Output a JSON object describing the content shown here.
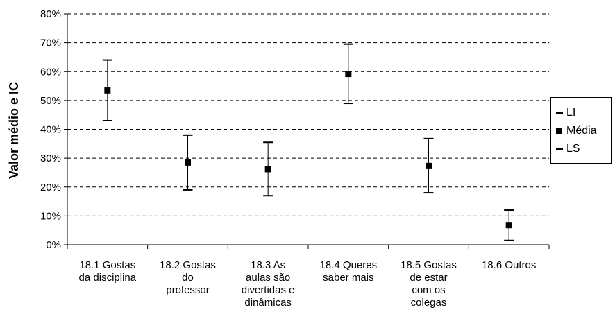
{
  "chart_data": {
    "type": "error_bar",
    "categories": [
      [
        "18.1 Gostas",
        "da disciplina"
      ],
      [
        "18.2 Gostas",
        "do",
        "professor"
      ],
      [
        "18.3 As",
        "aulas são",
        "divertidas e",
        "dinâmicas"
      ],
      [
        "18.4 Queres",
        "saber mais"
      ],
      [
        "18.5 Gostas",
        "de estar",
        "com os",
        "colegas"
      ],
      [
        "18.6 Outros"
      ]
    ],
    "series": [
      {
        "name": "LI",
        "values": [
          43,
          19,
          17,
          49,
          18,
          1.5
        ]
      },
      {
        "name": "Média",
        "values": [
          53.5,
          28.5,
          26.2,
          59.2,
          27.3,
          6.8
        ]
      },
      {
        "name": "LS",
        "values": [
          64,
          38,
          35.5,
          69.5,
          36.8,
          12
        ]
      }
    ],
    "ylabel": "Valor médio e IC",
    "ylim": [
      0,
      80
    ],
    "yticks": [
      "0%",
      "10%",
      "20%",
      "30%",
      "40%",
      "50%",
      "60%",
      "70%",
      "80%"
    ],
    "grid": "horizontal dashed",
    "legend_position": "right"
  }
}
